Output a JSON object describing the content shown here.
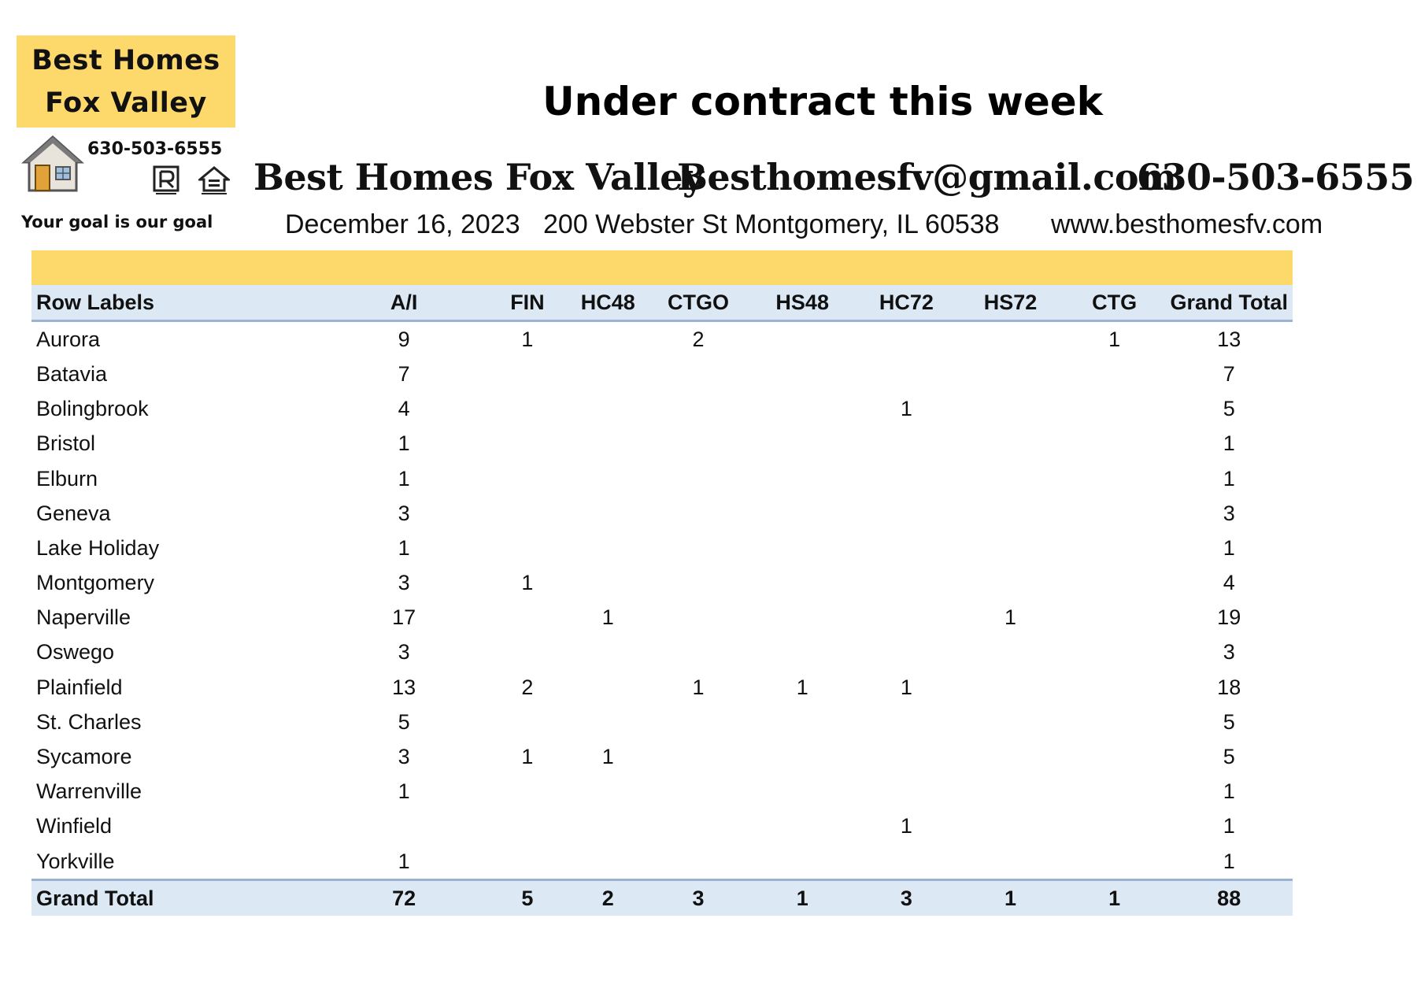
{
  "logo": {
    "line1": "Best Homes",
    "line2": "Fox Valley",
    "phone": "630-503-6555",
    "tagline": "Your goal is our goal",
    "icons": [
      "house-icon",
      "realtor-icon",
      "equal-housing-icon"
    ]
  },
  "header": {
    "title": "Under contract this week",
    "brand": "Best Homes Fox Valley",
    "email": "Besthomesfv@gmail.com",
    "phone": "630-503-6555",
    "date": "December 16, 2023",
    "address": "200 Webster St Montgomery, IL 60538",
    "website": "www.besthomesfv.com"
  },
  "colors": {
    "band": "#fdd86b",
    "header_row": "#dce9f5",
    "rule": "#9ab3d0"
  },
  "table": {
    "columns": [
      "Row Labels",
      "A/I",
      "FIN",
      "HC48",
      "CTGO",
      "HS48",
      "HC72",
      "HS72",
      "CTG",
      "Grand Total"
    ],
    "rows": [
      [
        "Aurora",
        "9",
        "1",
        "",
        "2",
        "",
        "",
        "",
        "1",
        "13"
      ],
      [
        "Batavia",
        "7",
        "",
        "",
        "",
        "",
        "",
        "",
        "",
        "7"
      ],
      [
        "Bolingbrook",
        "4",
        "",
        "",
        "",
        "",
        "1",
        "",
        "",
        "5"
      ],
      [
        "Bristol",
        "1",
        "",
        "",
        "",
        "",
        "",
        "",
        "",
        "1"
      ],
      [
        "Elburn",
        "1",
        "",
        "",
        "",
        "",
        "",
        "",
        "",
        "1"
      ],
      [
        "Geneva",
        "3",
        "",
        "",
        "",
        "",
        "",
        "",
        "",
        "3"
      ],
      [
        "Lake Holiday",
        "1",
        "",
        "",
        "",
        "",
        "",
        "",
        "",
        "1"
      ],
      [
        "Montgomery",
        "3",
        "1",
        "",
        "",
        "",
        "",
        "",
        "",
        "4"
      ],
      [
        "Naperville",
        "17",
        "",
        "1",
        "",
        "",
        "",
        "1",
        "",
        "19"
      ],
      [
        "Oswego",
        "3",
        "",
        "",
        "",
        "",
        "",
        "",
        "",
        "3"
      ],
      [
        "Plainfield",
        "13",
        "2",
        "",
        "1",
        "1",
        "1",
        "",
        "",
        "18"
      ],
      [
        "St. Charles",
        "5",
        "",
        "",
        "",
        "",
        "",
        "",
        "",
        "5"
      ],
      [
        "Sycamore",
        "3",
        "1",
        "1",
        "",
        "",
        "",
        "",
        "",
        "5"
      ],
      [
        "Warrenville",
        "1",
        "",
        "",
        "",
        "",
        "",
        "",
        "",
        "1"
      ],
      [
        "Winfield",
        "",
        "",
        "",
        "",
        "",
        "1",
        "",
        "",
        "1"
      ],
      [
        "Yorkville",
        "1",
        "",
        "",
        "",
        "",
        "",
        "",
        "",
        "1"
      ]
    ],
    "total": [
      "Grand Total",
      "72",
      "5",
      "2",
      "3",
      "1",
      "3",
      "1",
      "1",
      "88"
    ]
  }
}
